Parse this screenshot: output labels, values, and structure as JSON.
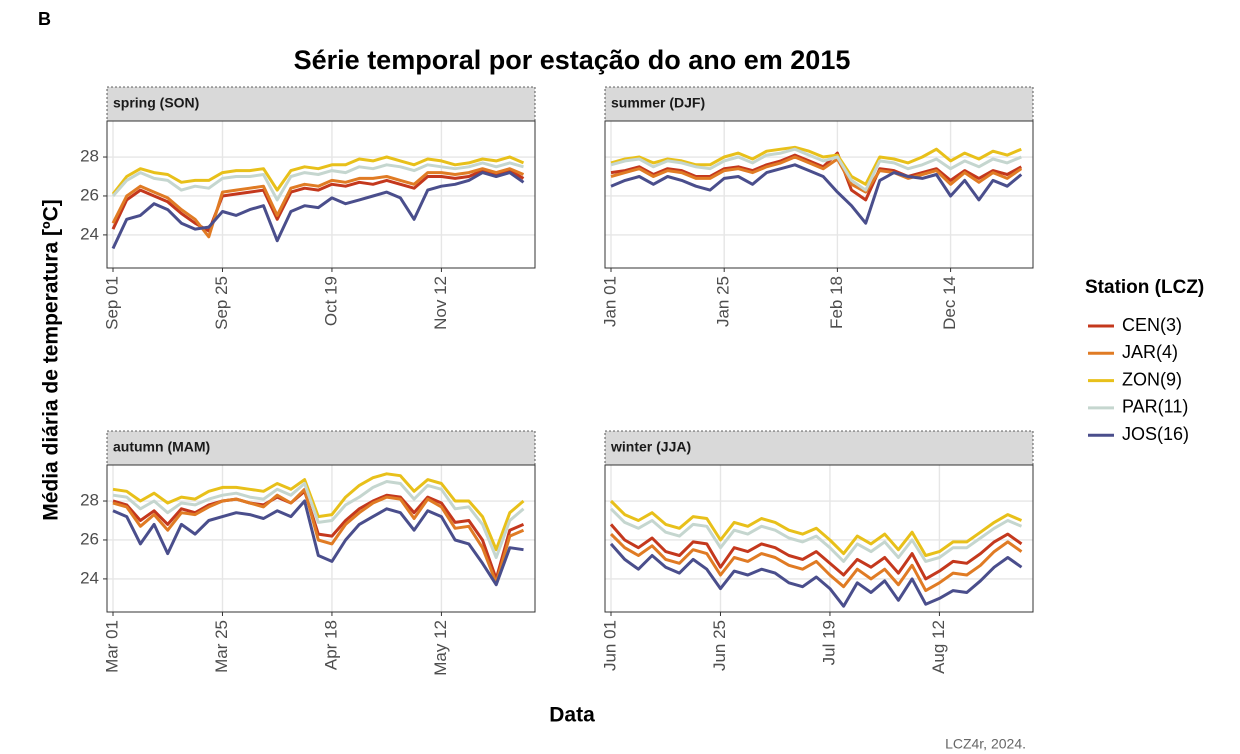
{
  "chart_data": {
    "type": "line",
    "tag": "B",
    "title": "Série temporal por estação do ano em 2015",
    "xlabel": "Data",
    "ylabel": "Média diária de temperatura [ºC]",
    "legend_title": "Station (LCZ)",
    "caption": "LCZ4r, 2024.",
    "ylim": [
      22.3,
      29.85
    ],
    "yticks": [
      24,
      26,
      28
    ],
    "grid": true,
    "panels": [
      {
        "title": "spring (SON)",
        "x": [
          "Sep 01",
          "Sep 04",
          "Sep 07",
          "Sep 10",
          "Sep 13",
          "Sep 16",
          "Sep 19",
          "Sep 22",
          "Sep 25",
          "Sep 28",
          "Oct 01",
          "Oct 04",
          "Oct 07",
          "Oct 10",
          "Oct 13",
          "Oct 16",
          "Oct 19",
          "Oct 22",
          "Oct 25",
          "Oct 28",
          "Oct 31",
          "Nov 03",
          "Nov 06",
          "Nov 09",
          "Nov 12",
          "Nov 15",
          "Nov 18",
          "Nov 21",
          "Nov 24",
          "Nov 27",
          "Nov 30"
        ],
        "xticks": [
          "Sep 01",
          "Sep 25",
          "Oct 19",
          "Nov 12"
        ],
        "series": [
          {
            "name": "CEN(3)",
            "color": "#c4381d",
            "values": [
              24.3,
              25.8,
              26.3,
              26.0,
              25.7,
              25.1,
              24.6,
              24.2,
              26.0,
              26.1,
              26.2,
              26.3,
              24.8,
              26.2,
              26.4,
              26.3,
              26.6,
              26.5,
              26.7,
              26.6,
              26.8,
              26.6,
              26.4,
              27.0,
              27.0,
              26.9,
              27.0,
              27.3,
              27.1,
              27.3,
              26.9
            ]
          },
          {
            "name": "JAR(4)",
            "color": "#e07b24",
            "values": [
              24.6,
              26.0,
              26.5,
              26.2,
              25.9,
              25.3,
              24.8,
              23.9,
              26.2,
              26.3,
              26.4,
              26.5,
              25.0,
              26.4,
              26.6,
              26.5,
              26.8,
              26.7,
              26.9,
              26.9,
              27.0,
              26.8,
              26.6,
              27.2,
              27.2,
              27.1,
              27.2,
              27.4,
              27.2,
              27.4,
              27.1
            ]
          },
          {
            "name": "ZON(9)",
            "color": "#e8c01a",
            "values": [
              26.1,
              27.0,
              27.4,
              27.2,
              27.1,
              26.7,
              26.8,
              26.8,
              27.2,
              27.3,
              27.3,
              27.4,
              26.3,
              27.3,
              27.5,
              27.4,
              27.6,
              27.6,
              27.9,
              27.8,
              28.0,
              27.8,
              27.6,
              27.9,
              27.8,
              27.6,
              27.7,
              27.9,
              27.8,
              28.0,
              27.7
            ]
          },
          {
            "name": "PAR(11)",
            "color": "#c5d6cf",
            "values": [
              26.0,
              26.8,
              27.2,
              26.9,
              26.8,
              26.3,
              26.5,
              26.4,
              26.9,
              27.0,
              27.0,
              27.1,
              25.8,
              27.0,
              27.2,
              27.1,
              27.3,
              27.2,
              27.5,
              27.4,
              27.6,
              27.5,
              27.3,
              27.6,
              27.5,
              27.4,
              27.5,
              27.7,
              27.5,
              27.7,
              27.5
            ]
          },
          {
            "name": "JOS(16)",
            "color": "#4a4e8c",
            "values": [
              23.3,
              24.8,
              25.0,
              25.6,
              25.3,
              24.6,
              24.3,
              24.4,
              25.2,
              25.0,
              25.3,
              25.5,
              23.7,
              25.2,
              25.5,
              25.4,
              25.9,
              25.6,
              25.8,
              26.0,
              26.2,
              25.9,
              24.8,
              26.3,
              26.5,
              26.6,
              26.8,
              27.2,
              27.0,
              27.2,
              26.7
            ]
          }
        ]
      },
      {
        "title": "summer (DJF)",
        "x": [
          "Jan 01",
          "Jan 04",
          "Jan 07",
          "Jan 10",
          "Jan 13",
          "Jan 16",
          "Jan 19",
          "Jan 22",
          "Jan 25",
          "Jan 28",
          "Jan 31",
          "Feb 03",
          "Feb 06",
          "Feb 09",
          "Feb 12",
          "Feb 15",
          "Feb 18",
          "Feb 21",
          "Feb 24",
          "Feb 27",
          "Dec 02",
          "Dec 05",
          "Dec 08",
          "Dec 11",
          "Dec 14",
          "Dec 17",
          "Dec 20",
          "Dec 23",
          "Dec 26",
          "Dec 29"
        ],
        "xticks": [
          "Jan 01",
          "Jan 25",
          "Feb 18",
          "Dec 14"
        ],
        "series": [
          {
            "name": "CEN(3)",
            "color": "#c4381d",
            "values": [
              27.2,
              27.3,
              27.5,
              27.1,
              27.4,
              27.3,
              27.0,
              27.0,
              27.4,
              27.5,
              27.3,
              27.6,
              27.8,
              28.1,
              27.8,
              27.5,
              28.2,
              26.3,
              25.8,
              27.4,
              27.3,
              27.0,
              27.2,
              27.4,
              26.8,
              27.3,
              26.9,
              27.3,
              27.1,
              27.5
            ]
          },
          {
            "name": "JAR(4)",
            "color": "#e07b24",
            "values": [
              27.0,
              27.2,
              27.4,
              27.0,
              27.3,
              27.2,
              26.9,
              26.9,
              27.3,
              27.4,
              27.2,
              27.5,
              27.7,
              28.0,
              27.7,
              27.4,
              27.9,
              26.6,
              26.2,
              27.3,
              27.2,
              26.9,
              27.1,
              27.3,
              26.6,
              27.2,
              26.7,
              27.2,
              26.9,
              27.4
            ]
          },
          {
            "name": "ZON(9)",
            "color": "#e8c01a",
            "values": [
              27.7,
              27.9,
              28.0,
              27.7,
              27.9,
              27.8,
              27.6,
              27.6,
              28.0,
              28.2,
              27.9,
              28.3,
              28.4,
              28.5,
              28.3,
              28.0,
              28.1,
              27.0,
              26.6,
              28.0,
              27.9,
              27.7,
              28.0,
              28.4,
              27.8,
              28.2,
              27.9,
              28.3,
              28.1,
              28.4
            ]
          },
          {
            "name": "PAR(11)",
            "color": "#c5d6cf",
            "values": [
              27.6,
              27.8,
              27.9,
              27.5,
              27.8,
              27.7,
              27.5,
              27.4,
              27.8,
              28.0,
              27.7,
              28.1,
              28.2,
              28.4,
              28.1,
              27.8,
              28.0,
              26.8,
              26.3,
              27.8,
              27.7,
              27.4,
              27.6,
              27.9,
              27.4,
              27.8,
              27.5,
              27.9,
              27.7,
              28.0
            ]
          },
          {
            "name": "JOS(16)",
            "color": "#4a4e8c",
            "values": [
              26.5,
              26.8,
              27.0,
              26.6,
              27.0,
              26.8,
              26.5,
              26.3,
              26.9,
              27.0,
              26.6,
              27.2,
              27.4,
              27.6,
              27.3,
              27.0,
              26.2,
              25.5,
              24.6,
              26.8,
              27.2,
              27.0,
              26.9,
              27.1,
              26.0,
              26.8,
              25.8,
              26.8,
              26.5,
              27.1
            ]
          }
        ]
      },
      {
        "title": "autumn (MAM)",
        "x": [
          "Mar 01",
          "Mar 04",
          "Mar 07",
          "Mar 10",
          "Mar 13",
          "Mar 16",
          "Mar 19",
          "Mar 22",
          "Mar 25",
          "Mar 28",
          "Mar 31",
          "Apr 03",
          "Apr 06",
          "Apr 09",
          "Apr 12",
          "Apr 15",
          "Apr 18",
          "Apr 21",
          "Apr 24",
          "Apr 27",
          "Apr 30",
          "May 03",
          "May 06",
          "May 09",
          "May 12",
          "May 15",
          "May 18",
          "May 21",
          "May 24",
          "May 27",
          "May 30"
        ],
        "xticks": [
          "Mar 01",
          "Mar 25",
          "Apr 18",
          "May 12"
        ],
        "series": [
          {
            "name": "CEN(3)",
            "color": "#c4381d",
            "values": [
              28.0,
              27.8,
              27.0,
              27.5,
              26.8,
              27.6,
              27.4,
              27.8,
              28.0,
              28.1,
              27.9,
              27.8,
              28.2,
              27.9,
              28.5,
              26.3,
              26.2,
              27.0,
              27.6,
              28.0,
              28.3,
              28.2,
              27.4,
              28.2,
              27.9,
              26.9,
              27.0,
              26.0,
              24.0,
              26.5,
              26.8
            ]
          },
          {
            "name": "JAR(4)",
            "color": "#e07b24",
            "values": [
              27.9,
              27.7,
              26.7,
              27.3,
              26.5,
              27.4,
              27.3,
              27.7,
              28.0,
              28.1,
              27.9,
              27.7,
              28.3,
              27.9,
              28.6,
              26.0,
              25.8,
              26.8,
              27.4,
              27.9,
              28.2,
              28.1,
              27.1,
              28.1,
              27.7,
              26.6,
              26.7,
              25.6,
              23.8,
              26.2,
              26.5
            ]
          },
          {
            "name": "ZON(9)",
            "color": "#e8c01a",
            "values": [
              28.6,
              28.5,
              28.0,
              28.4,
              27.9,
              28.2,
              28.1,
              28.5,
              28.7,
              28.7,
              28.6,
              28.5,
              28.9,
              28.6,
              29.1,
              27.2,
              27.3,
              28.2,
              28.8,
              29.2,
              29.4,
              29.3,
              28.5,
              29.1,
              28.9,
              28.0,
              28.0,
              27.2,
              25.5,
              27.4,
              28.0
            ]
          },
          {
            "name": "PAR(11)",
            "color": "#c5d6cf",
            "values": [
              28.3,
              28.2,
              27.6,
              28.0,
              27.4,
              27.9,
              27.8,
              28.1,
              28.3,
              28.4,
              28.2,
              28.1,
              28.6,
              28.3,
              28.9,
              26.9,
              27.0,
              27.8,
              28.2,
              28.7,
              29.0,
              28.9,
              28.1,
              28.8,
              28.6,
              27.6,
              27.7,
              26.8,
              25.1,
              27.0,
              27.6
            ]
          },
          {
            "name": "JOS(16)",
            "color": "#4a4e8c",
            "values": [
              27.5,
              27.2,
              25.8,
              26.8,
              25.3,
              26.8,
              26.3,
              27.0,
              27.2,
              27.4,
              27.3,
              27.1,
              27.5,
              27.2,
              28.0,
              25.2,
              24.9,
              26.0,
              26.8,
              27.2,
              27.6,
              27.4,
              26.5,
              27.5,
              27.2,
              26.0,
              25.8,
              24.8,
              23.7,
              25.6,
              25.5
            ]
          }
        ]
      },
      {
        "title": "winter (JJA)",
        "x": [
          "Jun 01",
          "Jun 04",
          "Jun 07",
          "Jun 10",
          "Jun 13",
          "Jun 16",
          "Jun 19",
          "Jun 22",
          "Jun 25",
          "Jun 28",
          "Jul 01",
          "Jul 04",
          "Jul 07",
          "Jul 10",
          "Jul 13",
          "Jul 16",
          "Jul 19",
          "Jul 22",
          "Jul 25",
          "Jul 28",
          "Jul 31",
          "Aug 03",
          "Aug 06",
          "Aug 09",
          "Aug 12",
          "Aug 15",
          "Aug 18",
          "Aug 21",
          "Aug 24",
          "Aug 27",
          "Aug 30"
        ],
        "xticks": [
          "Jun 01",
          "Jun 25",
          "Jul 19",
          "Aug 12"
        ],
        "series": [
          {
            "name": "CEN(3)",
            "color": "#c4381d",
            "values": [
              26.8,
              26.0,
              25.6,
              26.1,
              25.4,
              25.2,
              25.9,
              25.8,
              24.6,
              25.6,
              25.4,
              25.8,
              25.6,
              25.2,
              25.0,
              25.4,
              24.8,
              24.2,
              25.0,
              24.6,
              25.1,
              24.3,
              25.3,
              24.0,
              24.4,
              24.9,
              24.8,
              25.3,
              25.9,
              26.3,
              25.8
            ]
          },
          {
            "name": "JAR(4)",
            "color": "#e07b24",
            "values": [
              26.3,
              25.6,
              25.2,
              25.7,
              25.0,
              24.8,
              25.5,
              25.3,
              24.2,
              25.1,
              24.9,
              25.3,
              25.1,
              24.7,
              24.5,
              24.9,
              24.2,
              23.6,
              24.5,
              24.0,
              24.5,
              23.7,
              24.7,
              23.4,
              23.8,
              24.3,
              24.2,
              24.7,
              25.4,
              25.9,
              25.4
            ]
          },
          {
            "name": "ZON(9)",
            "color": "#e8c01a",
            "values": [
              28.0,
              27.3,
              27.0,
              27.4,
              26.8,
              26.6,
              27.2,
              27.1,
              26.0,
              26.9,
              26.7,
              27.1,
              26.9,
              26.5,
              26.3,
              26.6,
              26.0,
              25.3,
              26.2,
              25.8,
              26.3,
              25.5,
              26.4,
              25.2,
              25.4,
              25.9,
              25.9,
              26.4,
              26.9,
              27.3,
              27.0
            ]
          },
          {
            "name": "PAR(11)",
            "color": "#c5d6cf",
            "values": [
              27.6,
              26.9,
              26.6,
              27.0,
              26.4,
              26.2,
              26.8,
              26.7,
              25.6,
              26.5,
              26.3,
              26.7,
              26.5,
              26.1,
              25.9,
              26.2,
              25.6,
              24.9,
              25.8,
              25.4,
              25.9,
              25.1,
              26.0,
              24.9,
              25.1,
              25.6,
              25.6,
              26.1,
              26.6,
              27.0,
              26.7
            ]
          },
          {
            "name": "JOS(16)",
            "color": "#4a4e8c",
            "values": [
              25.8,
              25.0,
              24.5,
              25.2,
              24.6,
              24.3,
              25.0,
              24.5,
              23.5,
              24.4,
              24.2,
              24.5,
              24.3,
              23.8,
              23.6,
              24.1,
              23.5,
              22.6,
              23.8,
              23.3,
              23.9,
              22.9,
              24.0,
              22.7,
              23.0,
              23.4,
              23.3,
              23.9,
              24.6,
              25.1,
              24.6
            ]
          }
        ]
      }
    ]
  }
}
